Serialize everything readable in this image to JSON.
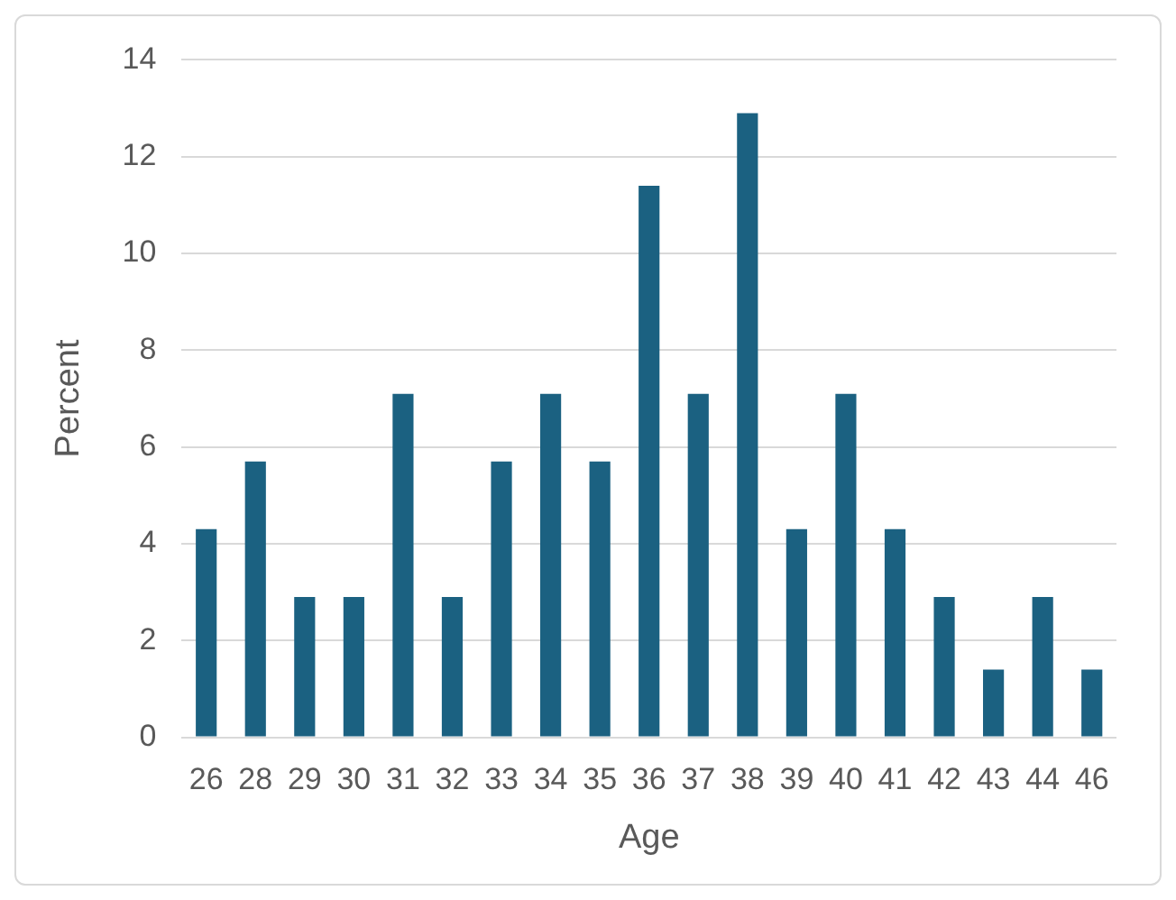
{
  "chart_data": {
    "type": "bar",
    "xlabel": "Age",
    "ylabel": "Percent",
    "categories": [
      "26",
      "28",
      "29",
      "30",
      "31",
      "32",
      "33",
      "34",
      "35",
      "36",
      "37",
      "38",
      "39",
      "40",
      "41",
      "42",
      "43",
      "44",
      "46"
    ],
    "values": [
      4.3,
      5.7,
      2.9,
      2.9,
      7.1,
      2.9,
      5.7,
      7.1,
      5.7,
      11.4,
      7.1,
      12.9,
      4.3,
      7.1,
      4.3,
      2.9,
      1.4,
      2.9,
      1.4
    ],
    "color": "#1b6181",
    "ylim": [
      0,
      14
    ],
    "yticks": [
      0,
      2,
      4,
      6,
      8,
      10,
      12,
      14
    ],
    "grid": "y",
    "legend": false
  }
}
